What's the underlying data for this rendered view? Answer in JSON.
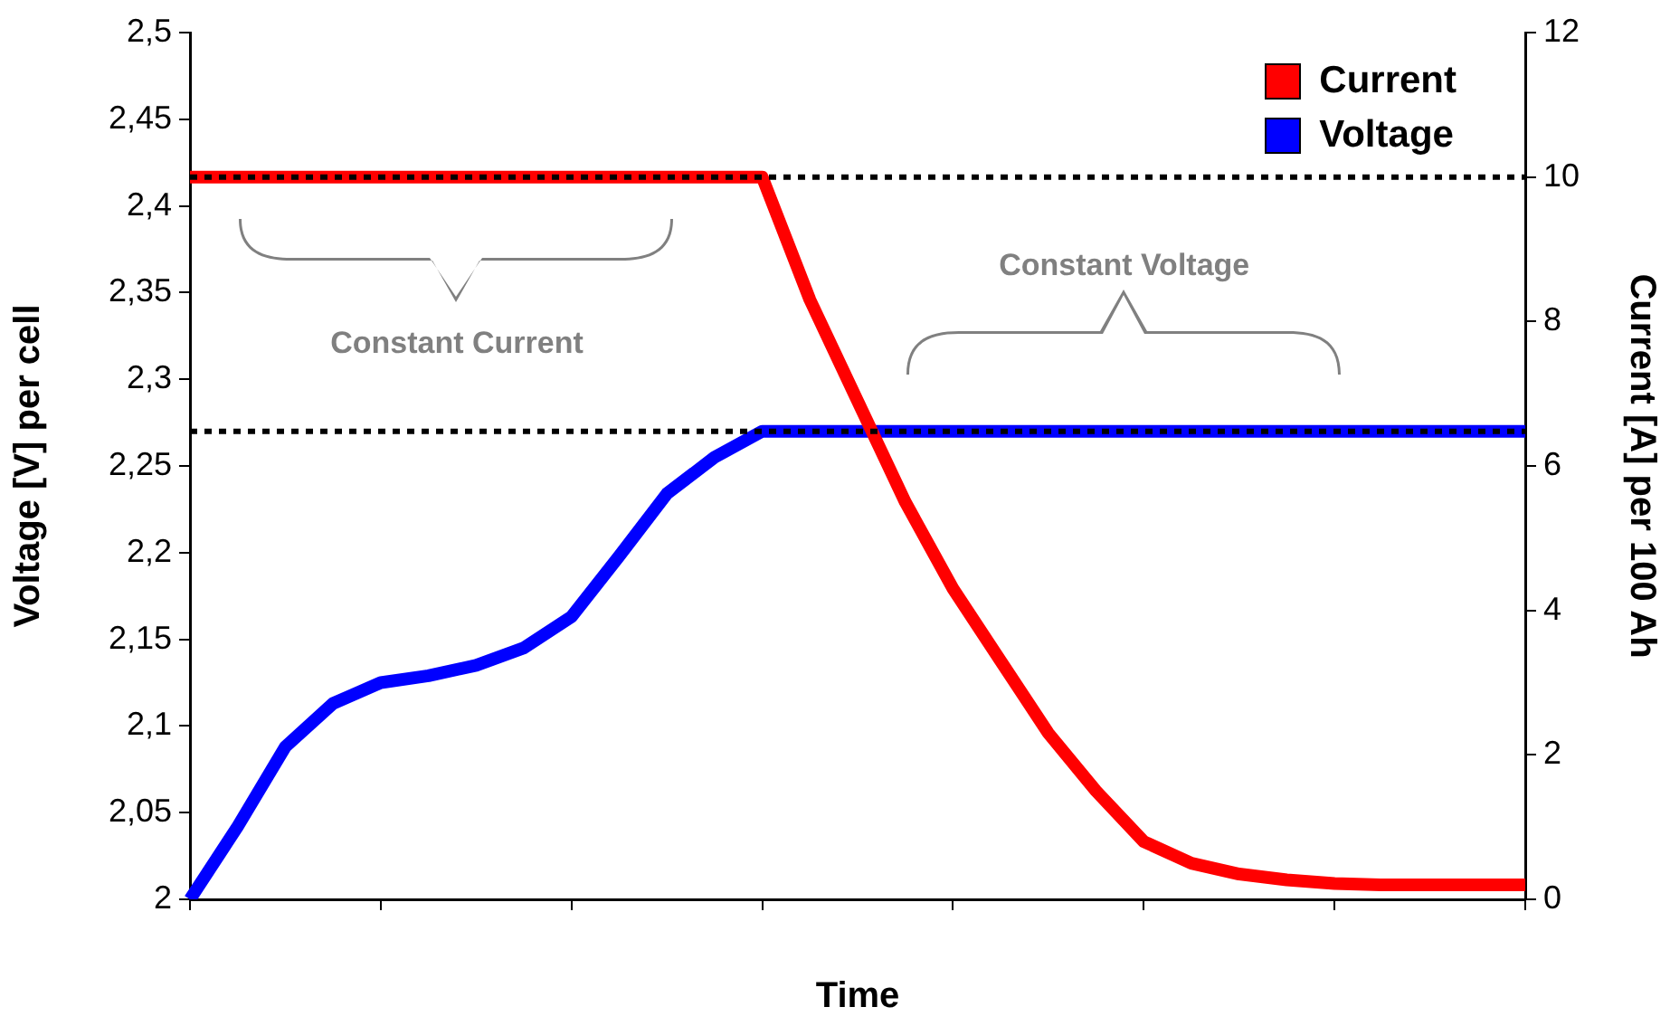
{
  "chart_data": {
    "type": "line",
    "xlabel": "Time",
    "ylabel": "Voltage [V] per cell",
    "y2label": "Current [A] per 100 Ah",
    "categories": [
      null,
      null,
      null,
      null,
      null,
      null,
      null,
      null,
      null,
      null,
      null,
      null,
      null,
      null,
      null,
      null,
      null,
      null,
      null,
      null,
      null,
      null,
      null,
      null,
      null,
      null,
      null,
      null,
      null
    ],
    "ylim": [
      2,
      2.5
    ],
    "yticks": [
      2,
      {
        "value": 2.05,
        "label": "2,05"
      },
      {
        "value": 2.1,
        "label": "2,1"
      },
      {
        "value": 2.15,
        "label": "2,15"
      },
      {
        "value": 2.2,
        "label": "2,2"
      },
      {
        "value": 2.25,
        "label": "2,25"
      },
      {
        "value": 2.3,
        "label": "2,3"
      },
      {
        "value": 2.35,
        "label": "2,35"
      },
      {
        "value": 2.4,
        "label": "2,4"
      },
      {
        "value": 2.45,
        "label": "2,45"
      },
      {
        "value": 2.5,
        "label": "2,5"
      }
    ],
    "y2lim": [
      0,
      12
    ],
    "y2ticks": [
      0,
      2,
      4,
      6,
      8,
      10,
      12
    ],
    "series": [
      {
        "name": "Current",
        "color": "#ff0000",
        "axis": "y2",
        "values": [
          10,
          10,
          10,
          10,
          10,
          10,
          10,
          10,
          10,
          10,
          10,
          10,
          10,
          8.3,
          6.9,
          5.5,
          4.3,
          3.3,
          2.3,
          1.5,
          0.8,
          0.5,
          0.35,
          0.27,
          0.22,
          0.2,
          0.2,
          0.2,
          0.2
        ]
      },
      {
        "name": "Voltage",
        "color": "#0000ff",
        "axis": "y",
        "values": [
          2.0,
          2.042,
          2.088,
          2.113,
          2.125,
          2.129,
          2.135,
          2.145,
          2.163,
          2.198,
          2.234,
          2.255,
          2.27,
          2.27,
          2.27,
          2.27,
          2.27,
          2.27,
          2.27,
          2.27,
          2.27,
          2.27,
          2.27,
          2.27,
          2.27,
          2.27,
          2.27,
          2.27,
          2.27
        ]
      }
    ],
    "ref_lines": [
      {
        "axis": "y",
        "value": 2.27,
        "color": "#000000",
        "line_style": "dotted"
      },
      {
        "axis": "y2",
        "value": 10,
        "color": "#000000",
        "line_style": "dotted"
      }
    ],
    "annotations": [
      "Constant Current",
      "Constant Voltage"
    ],
    "legend": "top right",
    "grid": false,
    "marker": "none",
    "line_style": "solid"
  }
}
